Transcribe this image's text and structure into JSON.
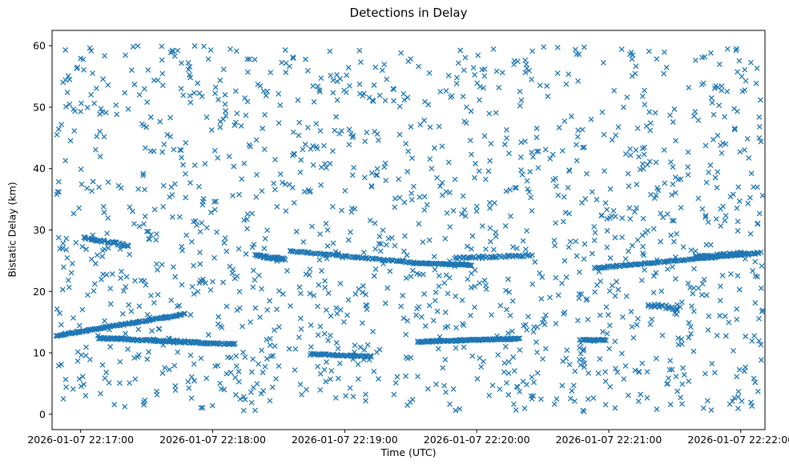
{
  "chart_data": {
    "type": "scatter",
    "title": "Detections in Delay",
    "xlabel": "Time (UTC)",
    "ylabel": "Bistatic Delay (km)",
    "marker": "x",
    "marker_color": "#1f77b4",
    "marker_half_size_px": 3,
    "x_unit": "seconds after 2026-01-07 22:17:00",
    "x_tick_labels": [
      "2026-01-07 22:17:00",
      "2026-01-07 22:18:00",
      "2026-01-07 22:19:00",
      "2026-01-07 22:20:00",
      "2026-01-07 22:21:00",
      "2026-01-07 22:22:00"
    ],
    "x_tick_seconds": [
      0,
      60,
      120,
      180,
      240,
      300
    ],
    "xlim_seconds": [
      -13,
      311
    ],
    "y_ticks": [
      0,
      10,
      20,
      30,
      40,
      50,
      60
    ],
    "ylim": [
      -2.5,
      62.5
    ],
    "grid": false,
    "legend": "none",
    "noise": {
      "seed": 20260107,
      "count": 1500,
      "t_range": [
        -11,
        310
      ],
      "y_range": [
        0.4,
        60.0
      ]
    },
    "tracks": [
      {
        "t0": -11,
        "t1": 47,
        "y0": 12.8,
        "y1": 16.3,
        "count": 150,
        "jitter": 0.12
      },
      {
        "t0": 8,
        "t1": 70,
        "y0": 12.4,
        "y1": 11.4,
        "count": 160,
        "jitter": 0.15
      },
      {
        "t0": 1,
        "t1": 22,
        "y0": 28.8,
        "y1": 27.4,
        "count": 40,
        "jitter": 0.2
      },
      {
        "t0": 80,
        "t1": 93,
        "y0": 25.8,
        "y1": 25.2,
        "count": 45,
        "jitter": 0.2
      },
      {
        "t0": 95,
        "t1": 153,
        "y0": 26.6,
        "y1": 24.6,
        "count": 90,
        "jitter": 0.12
      },
      {
        "t0": 153,
        "t1": 178,
        "y0": 24.6,
        "y1": 24.3,
        "count": 70,
        "jitter": 0.1
      },
      {
        "t0": 105,
        "t1": 132,
        "y0": 9.8,
        "y1": 9.4,
        "count": 60,
        "jitter": 0.12
      },
      {
        "t0": 153,
        "t1": 199,
        "y0": 11.8,
        "y1": 12.3,
        "count": 150,
        "jitter": 0.12
      },
      {
        "t0": 170,
        "t1": 205,
        "y0": 25.4,
        "y1": 25.9,
        "count": 55,
        "jitter": 0.2
      },
      {
        "t0": 227,
        "t1": 239,
        "y0": 12.1,
        "y1": 12.1,
        "count": 30,
        "jitter": 0.1
      },
      {
        "t0": 234,
        "t1": 309,
        "y0": 23.8,
        "y1": 26.3,
        "count": 150,
        "jitter": 0.12
      },
      {
        "t0": 279,
        "t1": 301,
        "y0": 25.5,
        "y1": 26.1,
        "count": 60,
        "jitter": 0.3
      },
      {
        "t0": 258,
        "t1": 272,
        "y0": 17.8,
        "y1": 17.2,
        "count": 25,
        "jitter": 0.3
      }
    ]
  }
}
